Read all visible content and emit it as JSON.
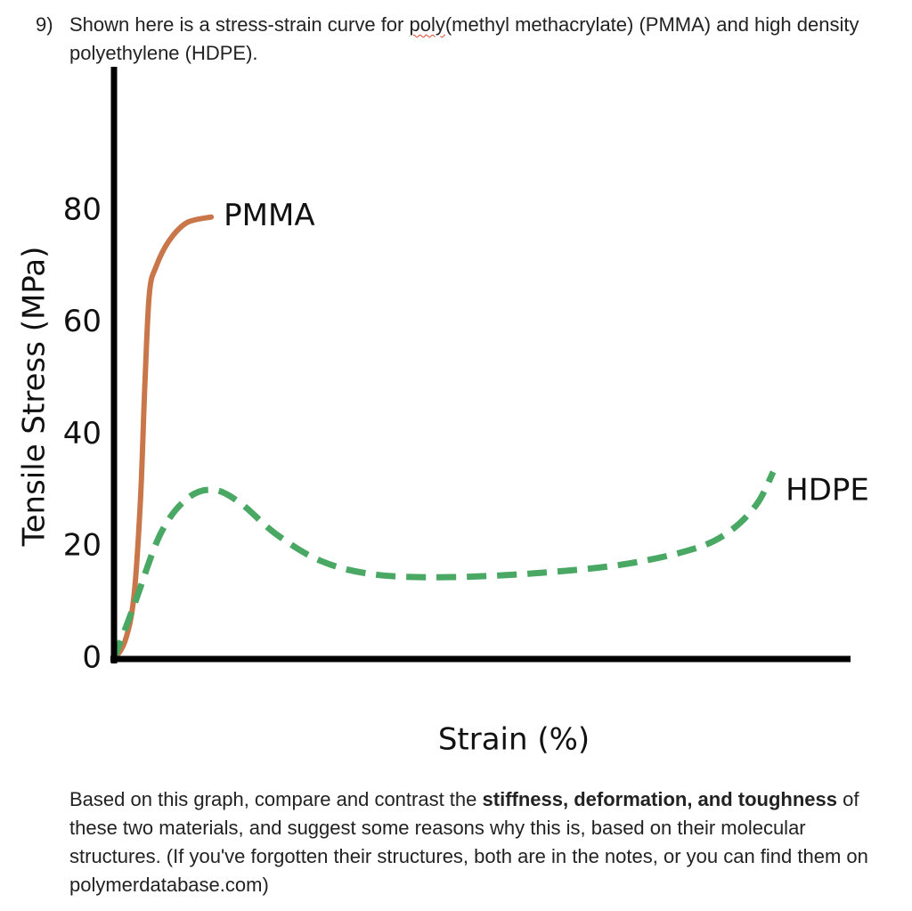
{
  "question": {
    "number": "9)",
    "prompt": [
      "Shown here is a stress-strain curve for ",
      "poly",
      "(methyl methacrylate) (PMMA) and high density polyethylene (HDPE)."
    ],
    "body": [
      "Based on this graph, compare and contrast the ",
      "stiffness, deformation, and toughness",
      " of these two materials, and suggest some reasons why this is, based on their molecular structures. (If you've forgotten their structures, both are in the notes, or you can find them on polymerdatabase.com)"
    ]
  },
  "chart_data": {
    "type": "line",
    "x_label": "Strain (%)",
    "y_label": "Tensile Stress (MPa)",
    "xlim": [
      0,
      100
    ],
    "ylim": [
      0,
      105
    ],
    "yticks": [
      0,
      20,
      40,
      60,
      80
    ],
    "grid": false,
    "series": [
      {
        "name": "PMMA",
        "color": "#c9774a",
        "dashed": false,
        "x": [
          0,
          1.5,
          2.7,
          3.6,
          4.2,
          4.8,
          5.7,
          7.5,
          9.9,
          13.2
        ],
        "values": [
          0,
          3.2,
          11.1,
          28.6,
          49.3,
          65.2,
          70,
          74.7,
          77.9,
          78.9
        ]
      },
      {
        "name": "HDPE",
        "color": "#4aa865",
        "dashed": true,
        "x": [
          0,
          2.7,
          6.3,
          9.9,
          13.5,
          17.2,
          22.0,
          28.1,
          35.3,
          45.0,
          57.1,
          69.2,
          78.8,
          83.7,
          87.3,
          89.5
        ],
        "values": [
          0,
          9.5,
          22.3,
          28.6,
          30.2,
          27.8,
          22.3,
          17.5,
          15.1,
          14.6,
          15.3,
          16.9,
          19.7,
          22.9,
          27.7,
          33.4
        ]
      }
    ]
  }
}
